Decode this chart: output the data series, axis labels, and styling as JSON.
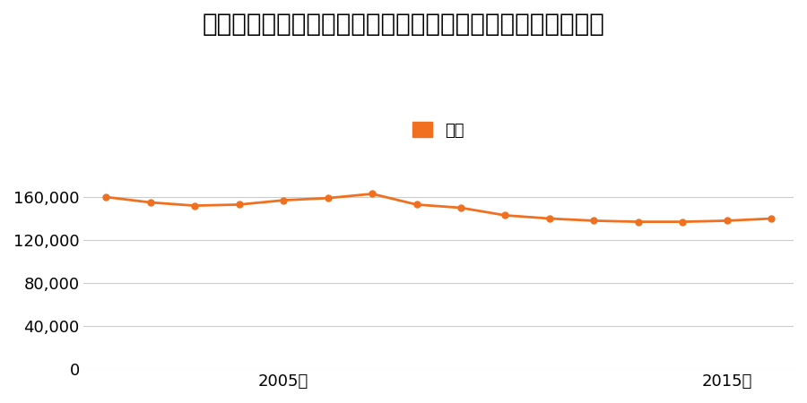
{
  "title": "埼玉県さいたま市見沼区東大宮６丁目５２番１０の地価推移",
  "legend_label": "価格",
  "line_color": "#f07020",
  "marker_color": "#f07020",
  "background_color": "#ffffff",
  "years": [
    2001,
    2002,
    2003,
    2004,
    2005,
    2006,
    2007,
    2008,
    2009,
    2010,
    2011,
    2012,
    2013,
    2014,
    2015,
    2016
  ],
  "values": [
    160000,
    155000,
    152000,
    153000,
    157000,
    159000,
    163000,
    153000,
    150000,
    143000,
    140000,
    138000,
    137000,
    137000,
    138000,
    140000
  ],
  "ylim": [
    0,
    190000
  ],
  "yticks": [
    0,
    40000,
    80000,
    120000,
    160000
  ],
  "xtick_years": [
    2005,
    2015
  ],
  "xtick_labels": [
    "2005年",
    "2015年"
  ],
  "grid_color": "#cccccc",
  "title_fontsize": 20,
  "tick_fontsize": 13,
  "legend_fontsize": 13
}
